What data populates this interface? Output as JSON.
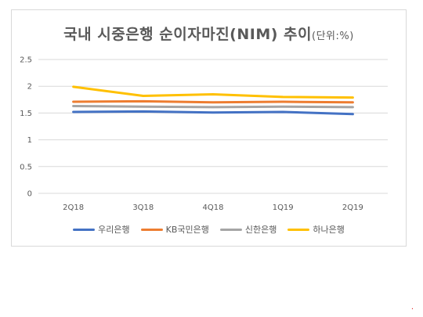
{
  "chart_data": {
    "type": "line",
    "title": "국내 시중은행 순이자마진(NIM) 추이",
    "subtitle": "(단위:%)",
    "categories": [
      "2Q18",
      "3Q18",
      "4Q18",
      "1Q19",
      "2Q19"
    ],
    "y_ticks": [
      "0",
      "0.5",
      "1",
      "1.5",
      "2",
      "2.5"
    ],
    "ylim": [
      0,
      2.5
    ],
    "grid": true,
    "legend_position": "bottom",
    "series": [
      {
        "name": "우리은행",
        "color": "#4472c4",
        "values": [
          1.52,
          1.53,
          1.51,
          1.52,
          1.48
        ]
      },
      {
        "name": "KB국민은행",
        "color": "#ed7d31",
        "values": [
          1.71,
          1.72,
          1.7,
          1.71,
          1.7
        ]
      },
      {
        "name": "신한은행",
        "color": "#a5a5a5",
        "values": [
          1.63,
          1.62,
          1.61,
          1.62,
          1.61
        ]
      },
      {
        "name": "하나은행",
        "color": "#ffc000",
        "values": [
          1.99,
          1.82,
          1.85,
          1.8,
          1.79
        ]
      }
    ]
  }
}
